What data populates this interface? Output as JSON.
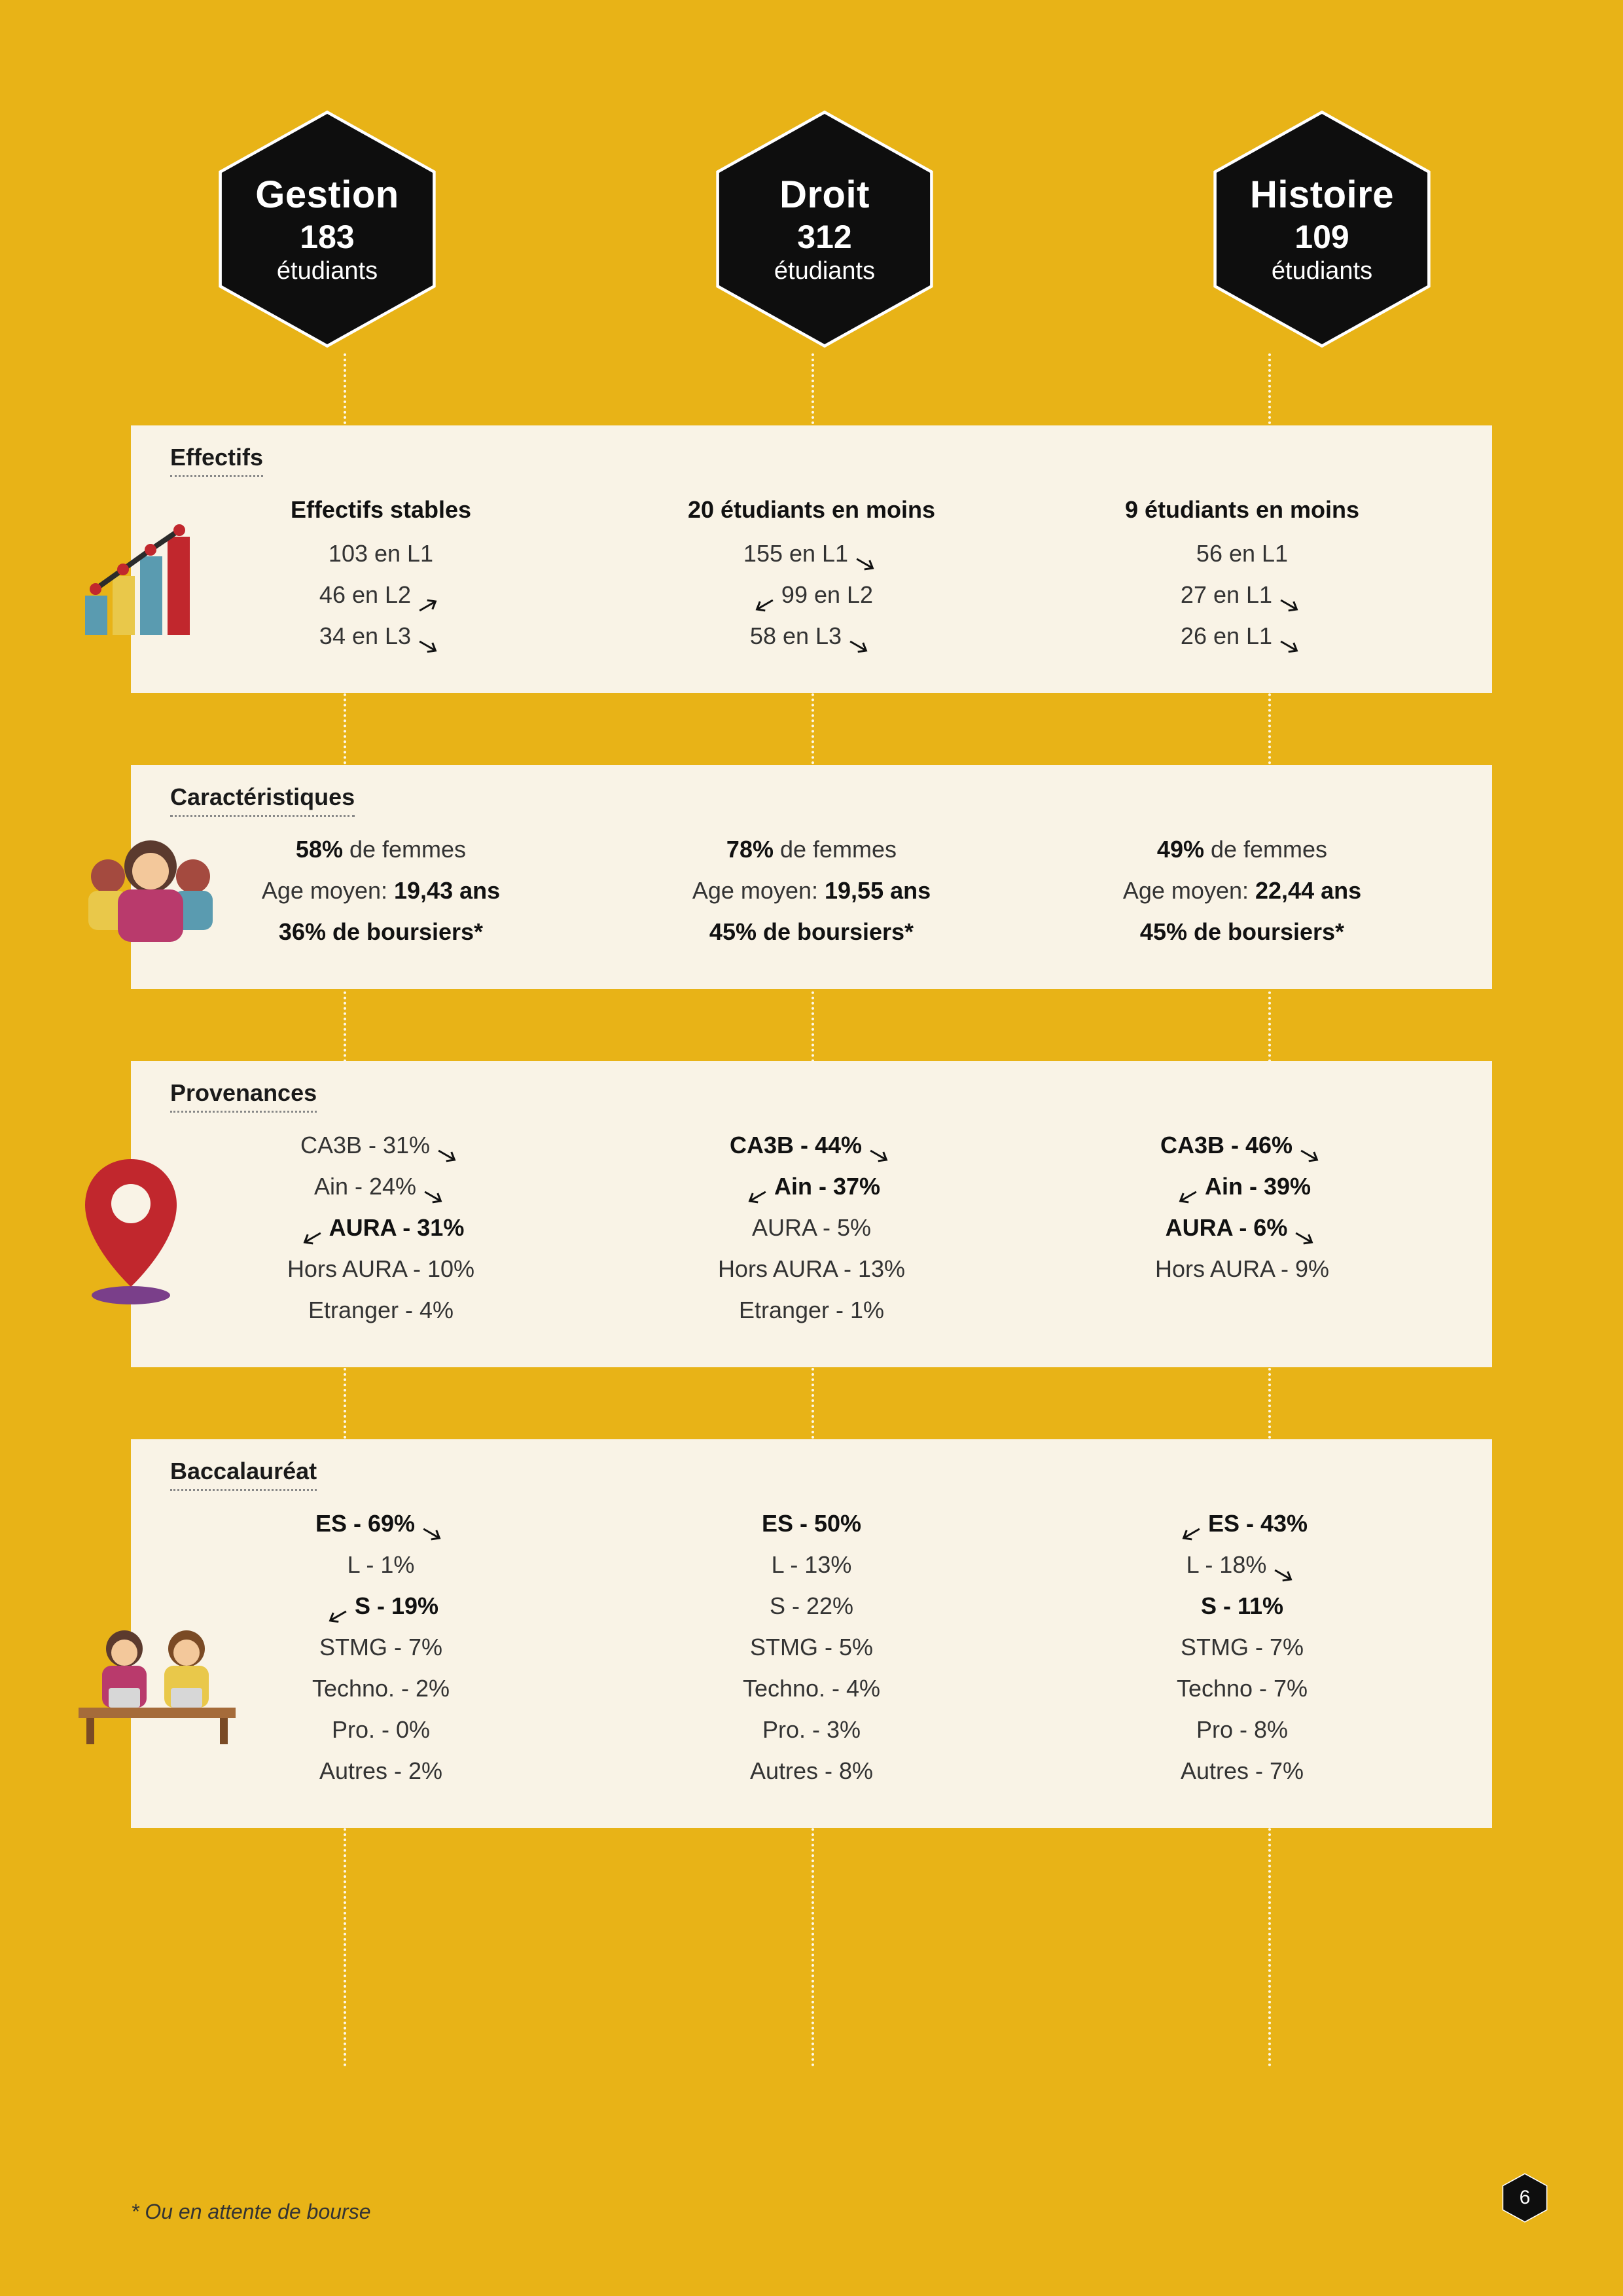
{
  "colors": {
    "page_bg": "#e8b317",
    "panel_bg": "#f9f3e6",
    "hex_fill": "#0e0e0e",
    "hex_stroke": "#ffffff",
    "text_dark": "#1a1a1a",
    "text_muted": "#555555",
    "dotted": "#ffffff"
  },
  "page_number": "6",
  "footnote": "* Ou en attente de bourse",
  "hex": [
    {
      "title": "Gestion",
      "number": "183",
      "sub": "étudiants"
    },
    {
      "title": "Droit",
      "number": "312",
      "sub": "étudiants"
    },
    {
      "title": "Histoire",
      "number": "109",
      "sub": "étudiants"
    }
  ],
  "sections": {
    "effectifs": {
      "title": "Effectifs",
      "cols": [
        {
          "head": "Effectifs stables",
          "lines": [
            {
              "text": "103 en L1",
              "arrow": null
            },
            {
              "text": "46 en L2",
              "arrow": "up-right"
            },
            {
              "text": "34 en L3",
              "arrow": "down-right"
            }
          ]
        },
        {
          "head": "20 étudiants en moins",
          "lines": [
            {
              "text": "155 en L1",
              "arrow": "down-right"
            },
            {
              "text": "99 en L2",
              "arrow": "down-left"
            },
            {
              "text": "58 en L3",
              "arrow": "down-right"
            }
          ]
        },
        {
          "head": "9 étudiants en moins",
          "lines": [
            {
              "text": "56 en L1",
              "arrow": null
            },
            {
              "text": "27 en L1",
              "arrow": "down-right"
            },
            {
              "text": "26 en L1",
              "arrow": "down-right"
            }
          ]
        }
      ]
    },
    "caracteristiques": {
      "title": "Caractéristiques",
      "cols": [
        {
          "lines": [
            {
              "pct": "58%",
              "rest": " de femmes"
            },
            {
              "label": "Age moyen: ",
              "val": "19,43 ans"
            },
            {
              "bold": "36% de boursiers*"
            }
          ]
        },
        {
          "lines": [
            {
              "pct": "78%",
              "rest": " de femmes"
            },
            {
              "label": "Age moyen: ",
              "val": "19,55 ans"
            },
            {
              "bold": "45% de boursiers*"
            }
          ]
        },
        {
          "lines": [
            {
              "pct": "49%",
              "rest": " de femmes"
            },
            {
              "label": "Age moyen: ",
              "val": "22,44 ans"
            },
            {
              "bold": "45% de boursiers*"
            }
          ]
        }
      ]
    },
    "provenances": {
      "title": "Provenances",
      "cols": [
        {
          "lines": [
            {
              "text": "CA3B - 31%",
              "arrow": "down-right"
            },
            {
              "text": "Ain - 24%",
              "arrow": "down-right"
            },
            {
              "text": "AURA - 31%",
              "arrow": "down-left",
              "bold": true
            },
            {
              "text": "Hors AURA - 10%"
            },
            {
              "text": "Etranger - 4%"
            }
          ]
        },
        {
          "lines": [
            {
              "text": "CA3B - 44%",
              "arrow": "down-right",
              "bold": true
            },
            {
              "text": "Ain - 37%",
              "arrow": "down-left",
              "bold": true
            },
            {
              "text": "AURA - 5%"
            },
            {
              "text": "Hors AURA - 13%"
            },
            {
              "text": "Etranger - 1%"
            }
          ]
        },
        {
          "lines": [
            {
              "text": "CA3B - 46%",
              "arrow": "down-right",
              "bold": true
            },
            {
              "text": "Ain - 39%",
              "arrow": "down-left",
              "bold": true
            },
            {
              "text": "AURA - 6%",
              "arrow": "down-right",
              "bold": true
            },
            {
              "text": "Hors AURA - 9%"
            }
          ]
        }
      ]
    },
    "bac": {
      "title": "Baccalauréat",
      "cols": [
        {
          "lines": [
            {
              "text": "ES - 69%",
              "arrow": "down-right",
              "bold": true
            },
            {
              "text": "L - 1%"
            },
            {
              "text": "S - 19%",
              "arrow": "down-left",
              "bold": true
            },
            {
              "text": "STMG - 7%"
            },
            {
              "text": "Techno. - 2%"
            },
            {
              "text": "Pro. - 0%"
            },
            {
              "text": "Autres - 2%"
            }
          ]
        },
        {
          "lines": [
            {
              "text": "ES - 50%",
              "bold": true
            },
            {
              "text": "L - 13%"
            },
            {
              "text": "S - 22%"
            },
            {
              "text": "STMG - 5%"
            },
            {
              "text": "Techno. - 4%"
            },
            {
              "text": "Pro. - 3%"
            },
            {
              "text": "Autres - 8%"
            }
          ]
        },
        {
          "lines": [
            {
              "text": "ES - 43%",
              "arrow": "down-left",
              "bold": true
            },
            {
              "text": "L - 18%",
              "arrow": "down-right"
            },
            {
              "text": "S - 11%",
              "bold": true
            },
            {
              "text": "STMG - 7%"
            },
            {
              "text": "Techno - 7%"
            },
            {
              "text": "Pro - 8%"
            },
            {
              "text": "Autres - 7%"
            }
          ]
        }
      ]
    }
  }
}
